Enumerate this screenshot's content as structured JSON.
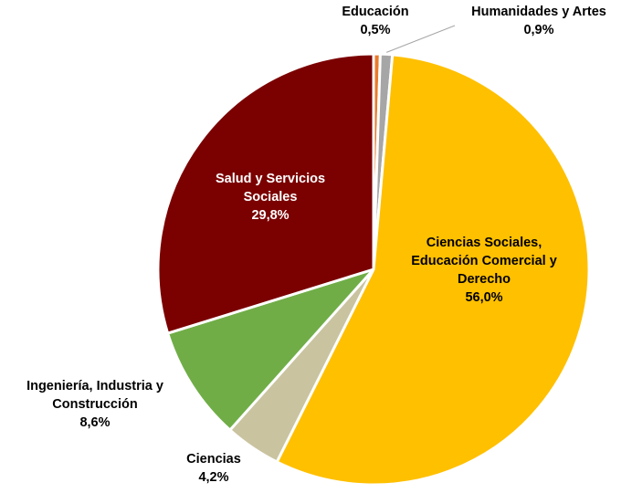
{
  "chart_data": {
    "type": "pie",
    "slices": [
      {
        "label_lines": [
          "Educación"
        ],
        "value_label": "0,5%",
        "value": 0.5,
        "color": "#e97a2c"
      },
      {
        "label_lines": [
          "Humanidades y Artes"
        ],
        "value_label": "0,9%",
        "value": 0.9,
        "color": "#a6a6a6"
      },
      {
        "label_lines": [
          "Ciencias Sociales,",
          "Educación Comercial y",
          "Derecho"
        ],
        "value_label": "56,0%",
        "value": 56.0,
        "color": "#ffc000"
      },
      {
        "label_lines": [
          "Ciencias"
        ],
        "value_label": "4,2%",
        "value": 4.2,
        "color": "#c9c3a0"
      },
      {
        "label_lines": [
          "Ingeniería, Industria y",
          "Construcción"
        ],
        "value_label": "8,6%",
        "value": 8.6,
        "color": "#70ad47"
      },
      {
        "label_lines": [
          "Salud y Servicios",
          "Sociales"
        ],
        "value_label": "29,8%",
        "value": 29.8,
        "color": "#7b0000"
      }
    ],
    "start_angle_deg": 0,
    "direction": "clockwise",
    "legend": "none",
    "data_labels": "category name and percentage"
  }
}
